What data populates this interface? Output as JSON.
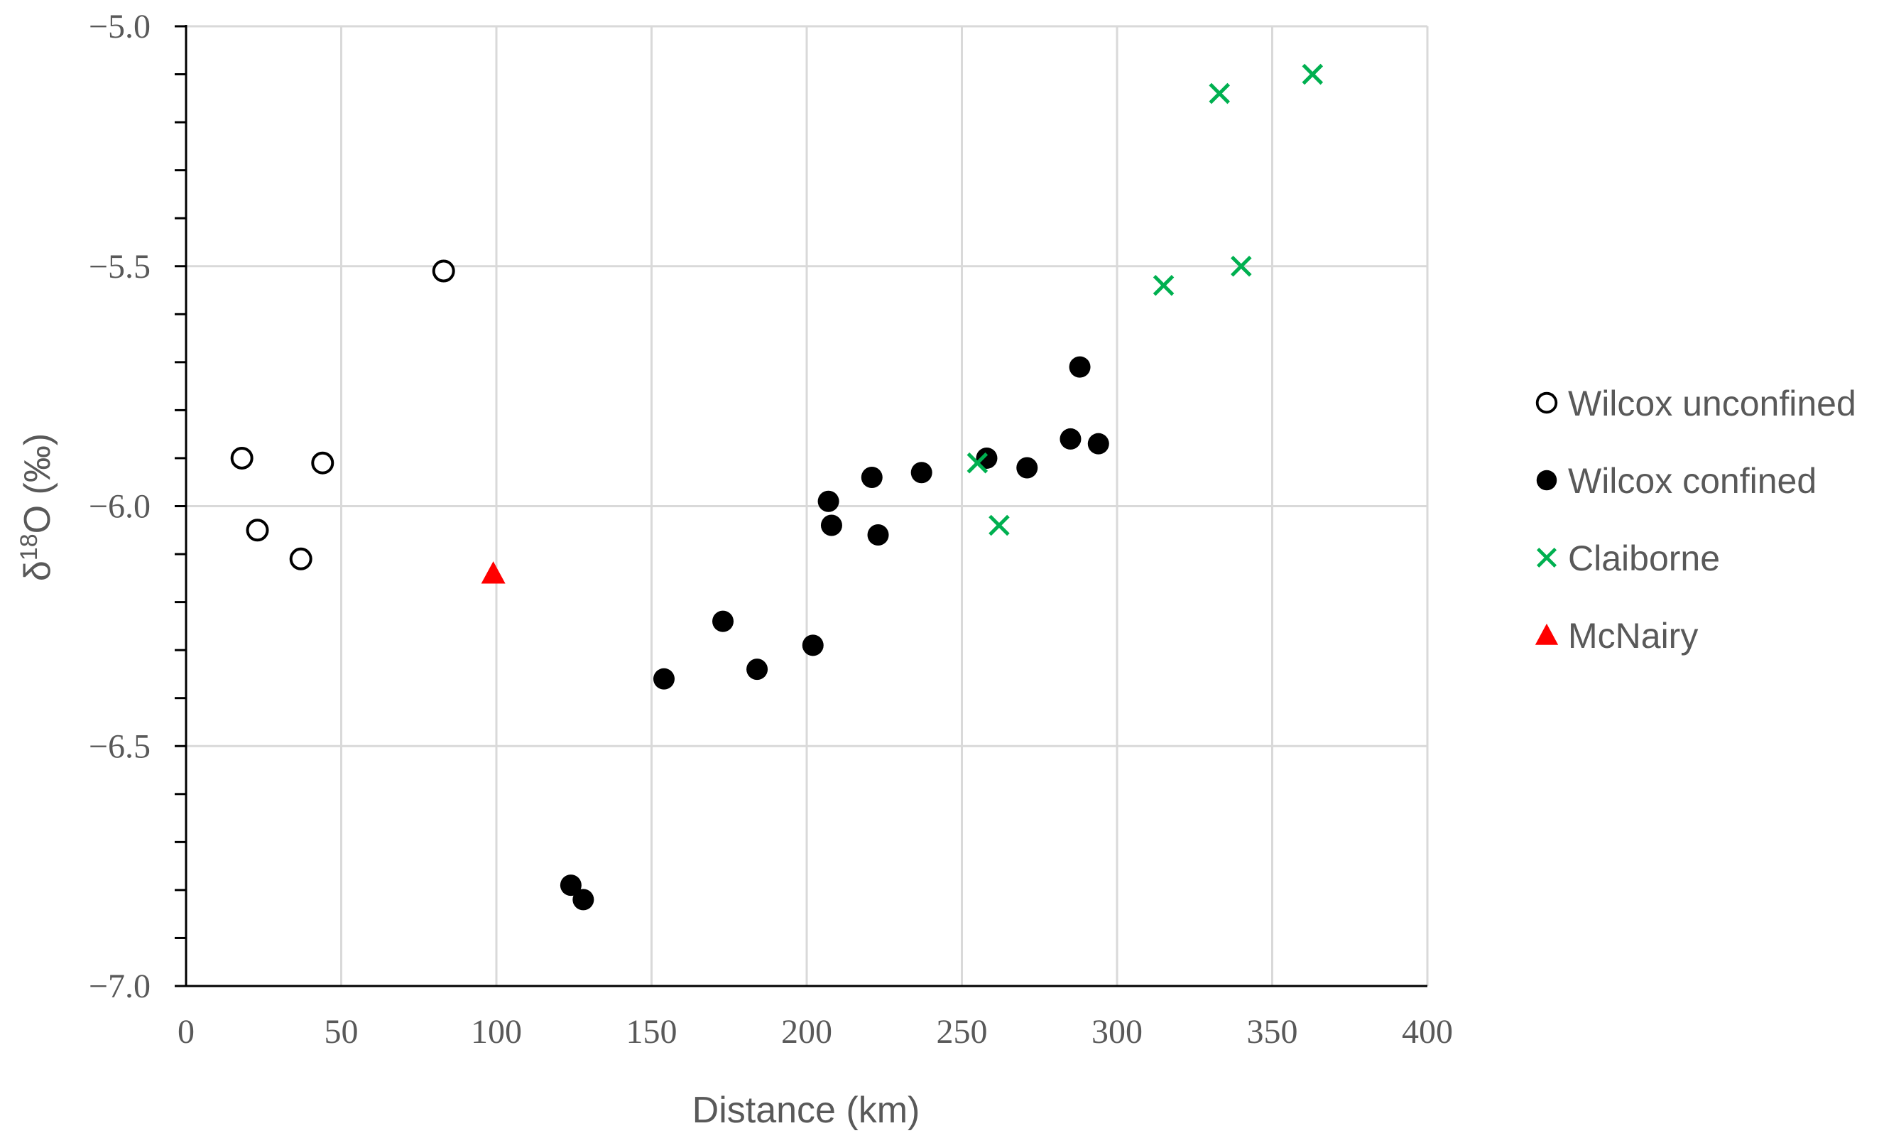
{
  "chart_data": {
    "type": "scatter",
    "xlabel": "Distance (km)",
    "ylabel": "δ18O (‰)",
    "ylabel_parts": {
      "symbol": "δ",
      "superscript": "18",
      "rest": "O (‰)"
    },
    "xlim": [
      0,
      400
    ],
    "ylim": [
      -7.0,
      -5.0
    ],
    "x_ticks": [
      0,
      50,
      100,
      150,
      200,
      250,
      300,
      350,
      400
    ],
    "x_tick_labels": [
      "0",
      "50",
      "100",
      "150",
      "200",
      "250",
      "300",
      "350",
      "400"
    ],
    "y_ticks": [
      -5.0,
      -5.5,
      -6.0,
      -6.5,
      -7.0
    ],
    "y_tick_labels": [
      "−5.0",
      "−5.5",
      "−6.0",
      "−6.5",
      "−7.0"
    ],
    "grid": true,
    "legend_position": "right",
    "series": [
      {
        "name": "Wilcox unconfined",
        "marker": "open-circle",
        "color": "#000000",
        "points": [
          {
            "x": 18,
            "y": -5.9
          },
          {
            "x": 23,
            "y": -6.05
          },
          {
            "x": 37,
            "y": -6.11
          },
          {
            "x": 44,
            "y": -5.91
          },
          {
            "x": 83,
            "y": -5.51
          }
        ]
      },
      {
        "name": "Wilcox confined",
        "marker": "filled-circle",
        "color": "#000000",
        "points": [
          {
            "x": 124,
            "y": -6.79
          },
          {
            "x": 128,
            "y": -6.82
          },
          {
            "x": 154,
            "y": -6.36
          },
          {
            "x": 173,
            "y": -6.24
          },
          {
            "x": 184,
            "y": -6.34
          },
          {
            "x": 202,
            "y": -6.29
          },
          {
            "x": 207,
            "y": -5.99
          },
          {
            "x": 208,
            "y": -6.04
          },
          {
            "x": 221,
            "y": -5.94
          },
          {
            "x": 223,
            "y": -6.06
          },
          {
            "x": 237,
            "y": -5.93
          },
          {
            "x": 258,
            "y": -5.9
          },
          {
            "x": 271,
            "y": -5.92
          },
          {
            "x": 285,
            "y": -5.86
          },
          {
            "x": 288,
            "y": -5.71
          },
          {
            "x": 294,
            "y": -5.87
          }
        ]
      },
      {
        "name": "Claiborne",
        "marker": "x",
        "color": "#00B050",
        "points": [
          {
            "x": 255,
            "y": -5.91
          },
          {
            "x": 262,
            "y": -6.04
          },
          {
            "x": 315,
            "y": -5.54
          },
          {
            "x": 333,
            "y": -5.14
          },
          {
            "x": 340,
            "y": -5.5
          },
          {
            "x": 363,
            "y": -5.1
          }
        ]
      },
      {
        "name": "McNairy",
        "marker": "triangle",
        "color": "#FF0000",
        "points": [
          {
            "x": 99,
            "y": -6.14
          }
        ]
      }
    ]
  }
}
